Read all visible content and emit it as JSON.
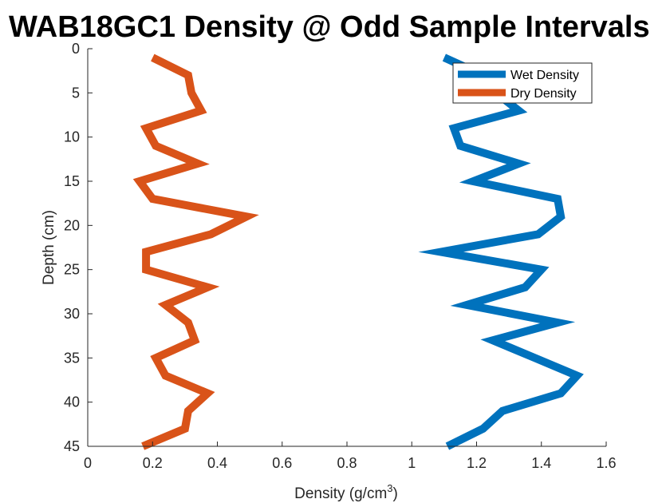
{
  "chart_data": {
    "type": "line",
    "title": "WAB18GC1 Density @ Odd Sample Intervals",
    "xlabel": "Density (g/cm",
    "xlabel_superscript": "3",
    "xlabel_suffix": ")",
    "ylabel": "Depth (cm)",
    "xlim": [
      0,
      1.6
    ],
    "ylim": [
      0,
      45
    ],
    "y_reversed": true,
    "xticks": [
      "0",
      "0.2",
      "0.4",
      "0.6",
      "0.8",
      "1",
      "1.2",
      "1.4",
      "1.6"
    ],
    "yticks": [
      "0",
      "5",
      "10",
      "15",
      "20",
      "25",
      "30",
      "35",
      "40",
      "45"
    ],
    "grid": false,
    "legend_position": "top-right",
    "depth": [
      1,
      3,
      5,
      7,
      9,
      11,
      13,
      15,
      17,
      19,
      21,
      23,
      25,
      27,
      29,
      31,
      33,
      35,
      37,
      39,
      41,
      43,
      45
    ],
    "series": [
      {
        "name": "Wet Density",
        "color": "#0072BD",
        "values": [
          1.1,
          1.22,
          1.26,
          1.33,
          1.13,
          1.15,
          1.33,
          1.19,
          1.45,
          1.46,
          1.39,
          1.09,
          1.4,
          1.35,
          1.17,
          1.45,
          1.25,
          1.38,
          1.51,
          1.46,
          1.28,
          1.22,
          1.11
        ]
      },
      {
        "name": "Dry Density",
        "color": "#D95319",
        "values": [
          0.2,
          0.31,
          0.32,
          0.35,
          0.18,
          0.21,
          0.34,
          0.16,
          0.2,
          0.49,
          0.38,
          0.18,
          0.18,
          0.37,
          0.24,
          0.31,
          0.33,
          0.21,
          0.24,
          0.37,
          0.31,
          0.3,
          0.17
        ]
      }
    ]
  }
}
